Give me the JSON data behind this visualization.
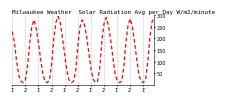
{
  "title": "Milwaukee Weather  Solar Radiation Avg per Day W/m2/minute",
  "line_color": "#FF0000",
  "background_color": "#FFFFFF",
  "plot_bg_color": "#FFFFFF",
  "grid_color": "#888888",
  "ylim": [
    0,
    300
  ],
  "yticks": [
    50,
    100,
    150,
    200,
    250,
    300
  ],
  "ytick_labels": [
    "50",
    "100",
    "150",
    "200",
    "250",
    "300"
  ],
  "values": [
    230,
    185,
    100,
    40,
    15,
    10,
    20,
    80,
    180,
    255,
    280,
    240,
    180,
    110,
    45,
    15,
    10,
    20,
    90,
    200,
    270,
    295,
    265,
    200,
    130,
    60,
    20,
    10,
    15,
    60,
    170,
    250,
    280,
    260,
    210,
    140,
    70,
    25,
    10,
    15,
    70,
    190,
    265,
    290,
    255,
    195,
    120,
    50,
    18,
    10,
    15,
    75,
    185,
    260,
    285,
    245,
    180,
    105,
    40,
    15,
    10,
    25,
    100,
    210,
    275,
    290
  ],
  "xtick_positions": [
    0,
    6,
    12,
    18,
    24,
    30,
    36,
    42,
    48,
    54,
    60
  ],
  "xtick_labels": [
    "1'",
    "2'",
    "1'",
    "2'",
    "1'",
    "2'",
    "1'",
    "2'",
    "1'",
    "2'",
    "1'"
  ],
  "tick_fontsize": 3.5,
  "title_fontsize": 4.2,
  "linewidth": 0.9,
  "n_vgrid": 11
}
